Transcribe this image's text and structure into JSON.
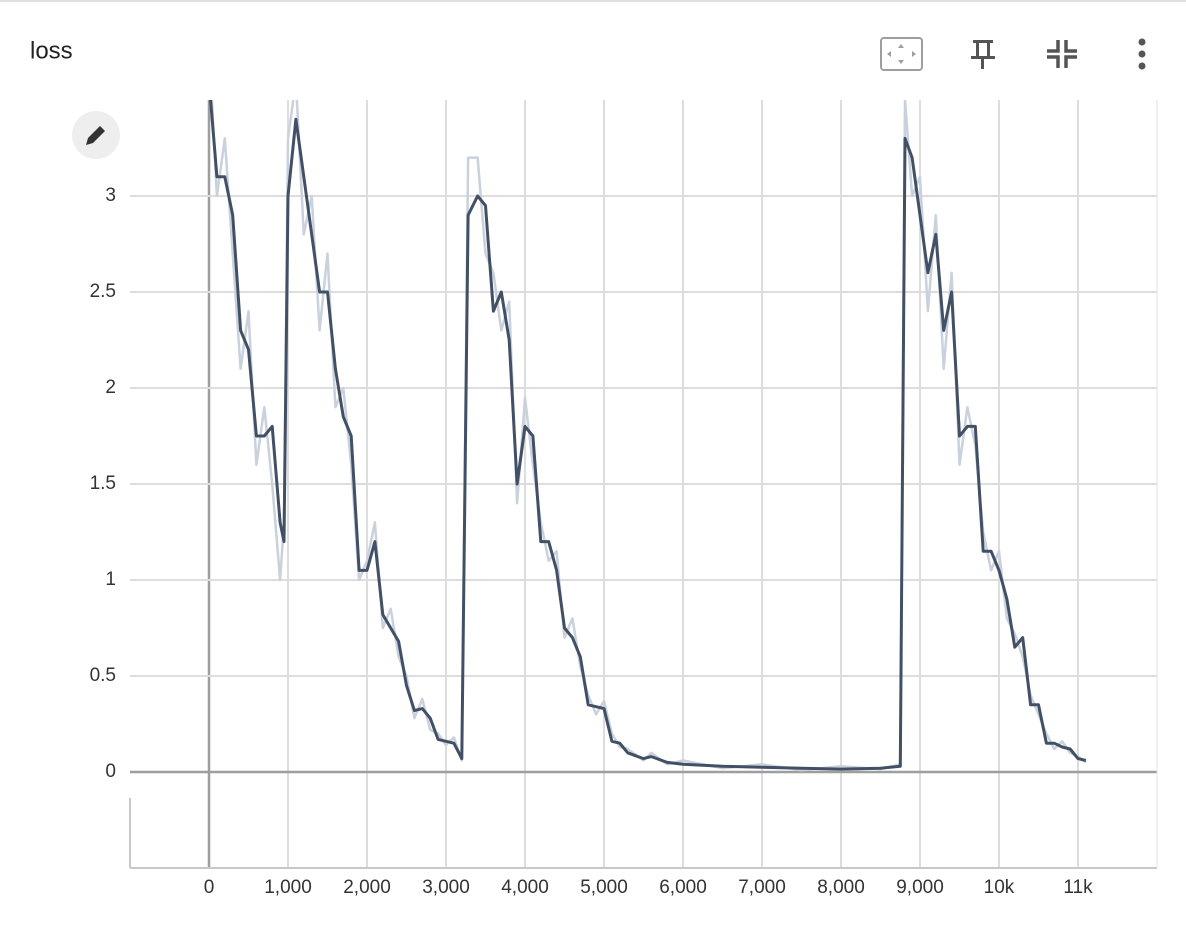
{
  "chart_data": {
    "type": "line",
    "title": "loss",
    "x": [
      0,
      100,
      200,
      300,
      400,
      500,
      600,
      700,
      800,
      900,
      950,
      1000,
      1100,
      1200,
      1300,
      1400,
      1500,
      1600,
      1700,
      1800,
      1900,
      2000,
      2100,
      2200,
      2300,
      2400,
      2500,
      2600,
      2700,
      2800,
      2900,
      3000,
      3100,
      3200,
      3280,
      3400,
      3500,
      3600,
      3700,
      3800,
      3900,
      4000,
      4100,
      4200,
      4300,
      4400,
      4500,
      4600,
      4700,
      4800,
      4900,
      5000,
      5100,
      5200,
      5300,
      5500,
      5600,
      5800,
      6000,
      6500,
      7000,
      7500,
      8000,
      8500,
      8750,
      8810,
      8900,
      9000,
      9100,
      9200,
      9300,
      9400,
      9500,
      9600,
      9700,
      9800,
      9900,
      10000,
      10100,
      10200,
      10300,
      10400,
      10500,
      10600,
      10700,
      10800,
      10900,
      11000,
      11100
    ],
    "series": [
      {
        "color": "#c9d1dd",
        "values": [
          3.8,
          3.0,
          3.3,
          2.7,
          2.1,
          2.4,
          1.6,
          1.9,
          1.5,
          1.0,
          1.3,
          3.3,
          3.6,
          2.8,
          3.0,
          2.3,
          2.7,
          1.9,
          2.0,
          1.6,
          1.0,
          1.1,
          1.3,
          0.75,
          0.85,
          0.6,
          0.5,
          0.28,
          0.38,
          0.22,
          0.2,
          0.14,
          0.18,
          0.06,
          3.2,
          3.2,
          2.7,
          2.6,
          2.3,
          2.45,
          1.4,
          1.95,
          1.6,
          1.3,
          1.1,
          1.15,
          0.7,
          0.8,
          0.55,
          0.4,
          0.3,
          0.37,
          0.2,
          0.13,
          0.12,
          0.06,
          0.1,
          0.04,
          0.06,
          0.02,
          0.04,
          0.01,
          0.03,
          0.015,
          0.04,
          3.5,
          3.0,
          3.1,
          2.4,
          2.9,
          2.1,
          2.6,
          1.6,
          1.9,
          1.7,
          1.25,
          1.05,
          1.15,
          0.8,
          0.72,
          0.6,
          0.4,
          0.3,
          0.2,
          0.12,
          0.16,
          0.1,
          0.08,
          0.05
        ]
      },
      {
        "color": "#425066",
        "values": [
          3.6,
          3.1,
          3.1,
          2.9,
          2.3,
          2.2,
          1.75,
          1.75,
          1.8,
          1.3,
          1.2,
          3.0,
          3.4,
          3.1,
          2.8,
          2.5,
          2.5,
          2.1,
          1.85,
          1.75,
          1.05,
          1.05,
          1.2,
          0.82,
          0.75,
          0.68,
          0.45,
          0.32,
          0.33,
          0.28,
          0.17,
          0.16,
          0.15,
          0.07,
          2.9,
          3.0,
          2.95,
          2.4,
          2.5,
          2.25,
          1.5,
          1.8,
          1.75,
          1.2,
          1.2,
          1.05,
          0.75,
          0.7,
          0.6,
          0.35,
          0.34,
          0.33,
          0.16,
          0.15,
          0.1,
          0.07,
          0.08,
          0.05,
          0.04,
          0.03,
          0.025,
          0.02,
          0.015,
          0.02,
          0.03,
          3.3,
          3.2,
          2.9,
          2.6,
          2.8,
          2.3,
          2.5,
          1.75,
          1.8,
          1.8,
          1.15,
          1.15,
          1.05,
          0.9,
          0.65,
          0.7,
          0.35,
          0.35,
          0.15,
          0.15,
          0.13,
          0.12,
          0.07,
          0.06
        ]
      }
    ],
    "xlim": [
      -1000,
      12000
    ],
    "ylim": [
      -0.5,
      3.5
    ],
    "xticks": [
      0,
      {
        "value": 1000,
        "label": "1,000"
      },
      {
        "value": 2000,
        "label": "2,000"
      },
      {
        "value": 3000,
        "label": "3,000"
      },
      {
        "value": 4000,
        "label": "4,000"
      },
      {
        "value": 5000,
        "label": "5,000"
      },
      {
        "value": 6000,
        "label": "6,000"
      },
      {
        "value": 7000,
        "label": "7,000"
      },
      {
        "value": 8000,
        "label": "8,000"
      },
      {
        "value": 9000,
        "label": "9,000"
      },
      {
        "value": 10000,
        "label": "10k"
      },
      {
        "value": 11000,
        "label": "11k"
      }
    ],
    "yticks": [
      0,
      0.5,
      1,
      1.5,
      2,
      2.5,
      3
    ],
    "grid": true
  }
}
